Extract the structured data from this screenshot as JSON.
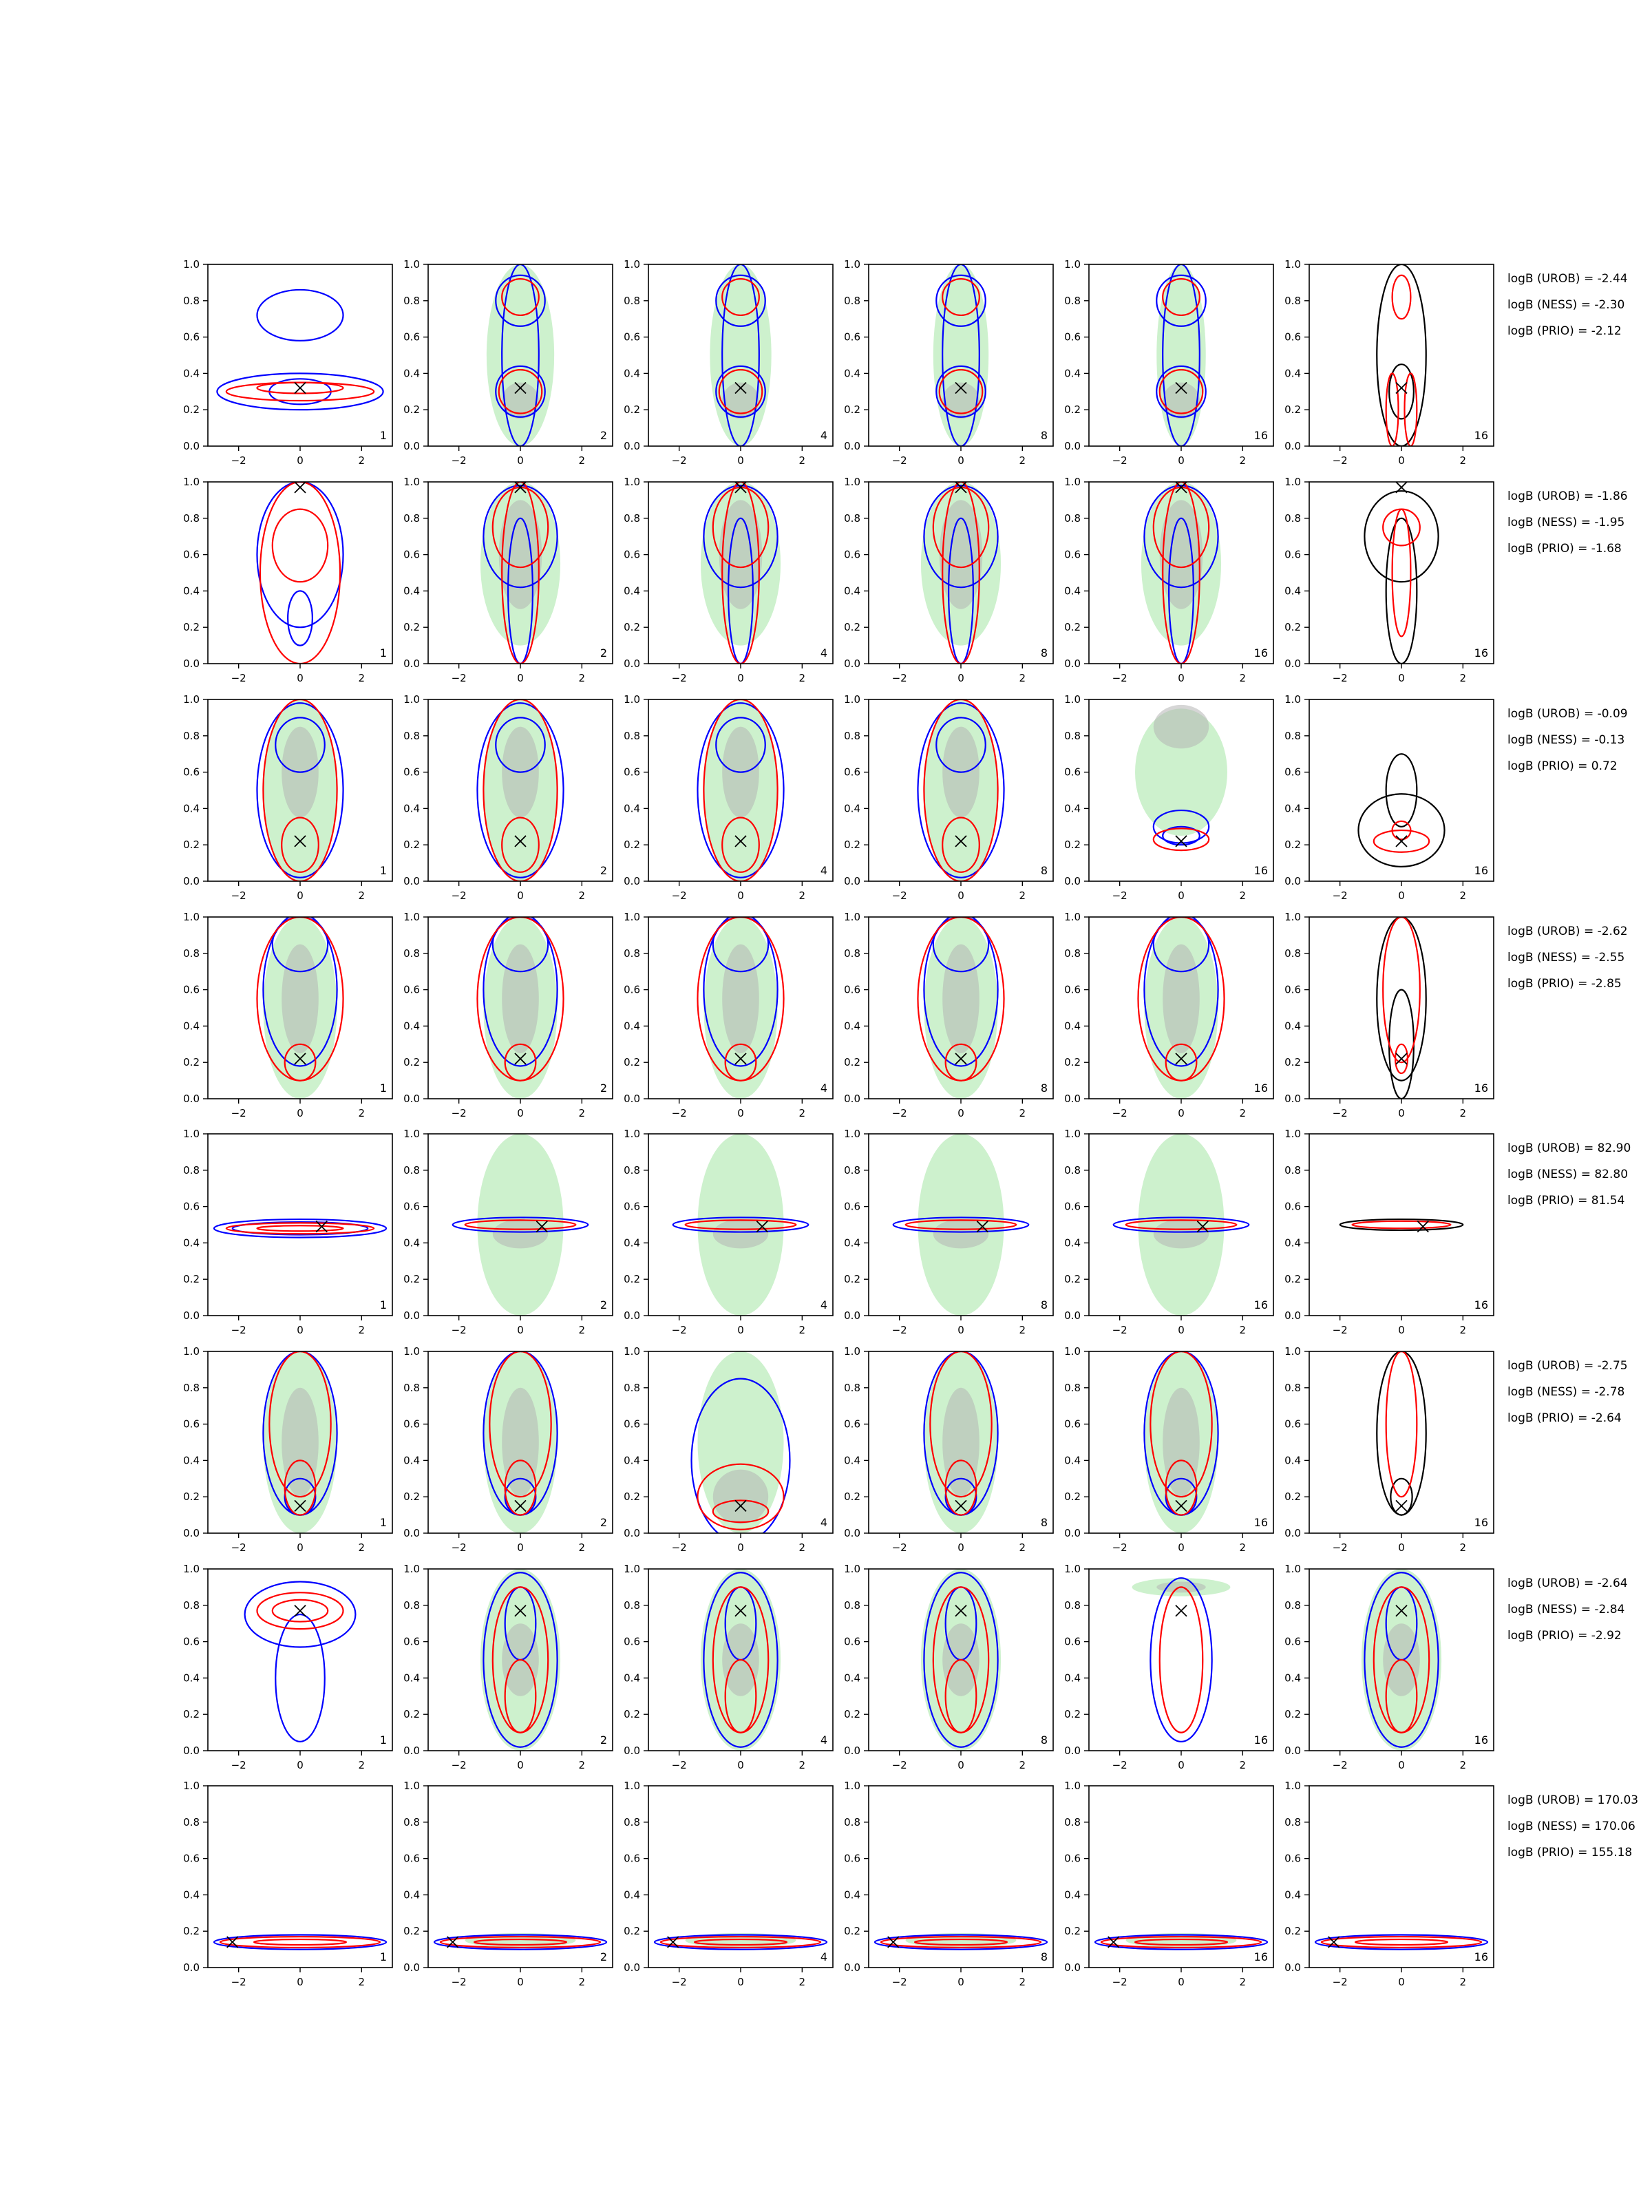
{
  "chart_data": {
    "type": "contour",
    "x_axis": {
      "range": [
        -3,
        3
      ],
      "ticks": [
        -2,
        0,
        2
      ]
    },
    "y_axis": {
      "range": [
        0,
        1
      ],
      "ticks": [
        "0.0",
        "0.2",
        "0.4",
        "0.6",
        "0.8",
        "1.0"
      ]
    },
    "column_labels": [
      "1",
      "2",
      "4",
      "8",
      "16",
      "16"
    ],
    "colors": {
      "blue": "#0000ff",
      "red": "#ff0000",
      "black": "#000000",
      "green_fill": "#c8f0c8",
      "gray_fill": "#b4b4b4"
    },
    "rows": [
      {
        "marker": [
          0.0,
          0.32
        ],
        "stats": [
          "logB (UROB) = -2.44",
          "logB (NESS) = -2.30",
          "logB (PRIO) = -2.12"
        ]
      },
      {
        "marker": [
          0.0,
          0.97
        ],
        "stats": [
          "logB (UROB) = -1.86",
          "logB (NESS) = -1.95",
          "logB (PRIO) = -1.68"
        ]
      },
      {
        "marker": [
          0.0,
          0.22
        ],
        "stats": [
          "logB (UROB) = -0.09",
          "logB (NESS) = -0.13",
          "logB (PRIO) = 0.72"
        ]
      },
      {
        "marker": [
          0.0,
          0.22
        ],
        "stats": [
          "logB (UROB) = -2.62",
          "logB (NESS) = -2.55",
          "logB (PRIO) = -2.85"
        ]
      },
      {
        "marker": [
          0.7,
          0.49
        ],
        "stats": [
          "logB (UROB) = 82.90",
          "logB (NESS) = 82.80",
          "logB (PRIO) = 81.54"
        ]
      },
      {
        "marker": [
          0.0,
          0.15
        ],
        "stats": [
          "logB (UROB) = -2.75",
          "logB (NESS) = -2.78",
          "logB (PRIO) = -2.64"
        ]
      },
      {
        "marker": [
          0.0,
          0.77
        ],
        "stats": [
          "logB (UROB) = -2.64",
          "logB (NESS) = -2.84",
          "logB (PRIO) = -2.92"
        ]
      },
      {
        "marker": [
          -2.2,
          0.14
        ],
        "stats": [
          "logB (UROB) = 170.03",
          "logB (NESS) = 170.06",
          "logB (PRIO) = 155.18"
        ]
      }
    ]
  }
}
